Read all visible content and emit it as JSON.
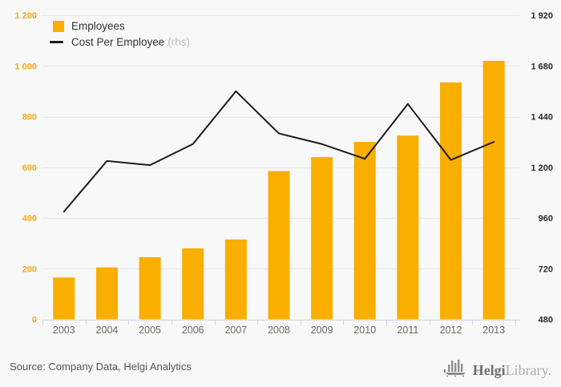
{
  "chart_data": {
    "type": "bar",
    "categories": [
      "2003",
      "2004",
      "2005",
      "2006",
      "2007",
      "2008",
      "2009",
      "2010",
      "2011",
      "2012",
      "2013"
    ],
    "series": [
      {
        "name": "Employees",
        "type": "bar",
        "axis": "left",
        "color": "#F9AE00",
        "values": [
          165,
          205,
          245,
          280,
          315,
          585,
          640,
          700,
          725,
          935,
          1020
        ]
      },
      {
        "name": "Cost Per Employee",
        "suffix": "(rhs)",
        "type": "line",
        "axis": "right",
        "color": "#1A1A1A",
        "values": [
          990,
          1230,
          1210,
          1310,
          1560,
          1360,
          1310,
          1240,
          1500,
          1235,
          1320
        ]
      }
    ],
    "left_axis": {
      "min": 0,
      "max": 1200,
      "tick_values": [
        0,
        200,
        400,
        600,
        800,
        1000,
        1200
      ],
      "tick_labels": [
        "0",
        "200",
        "400",
        "600",
        "800",
        "1 000",
        "1 200"
      ],
      "label_color": "#F2A81C"
    },
    "right_axis": {
      "min": 480,
      "max": 1920,
      "tick_values": [
        480,
        720,
        960,
        1200,
        1440,
        1680,
        1920
      ],
      "tick_labels": [
        "480",
        "720",
        "960",
        "1 200",
        "1 440",
        "1 680",
        "1 920"
      ],
      "label_color": "#2B2B2B"
    },
    "grid": true,
    "grid_color": "#E8E8E8",
    "axis_line_color": "#CCD6EB",
    "legend_position": "top-left",
    "title": ""
  },
  "legend": {
    "employees": "Employees",
    "cost": "Cost Per Employee",
    "cost_suffix": "(rhs)"
  },
  "footer": {
    "source": "Source: Company Data, Helgi Analytics",
    "logo_helgi": "Helgi",
    "logo_library": "Library."
  }
}
